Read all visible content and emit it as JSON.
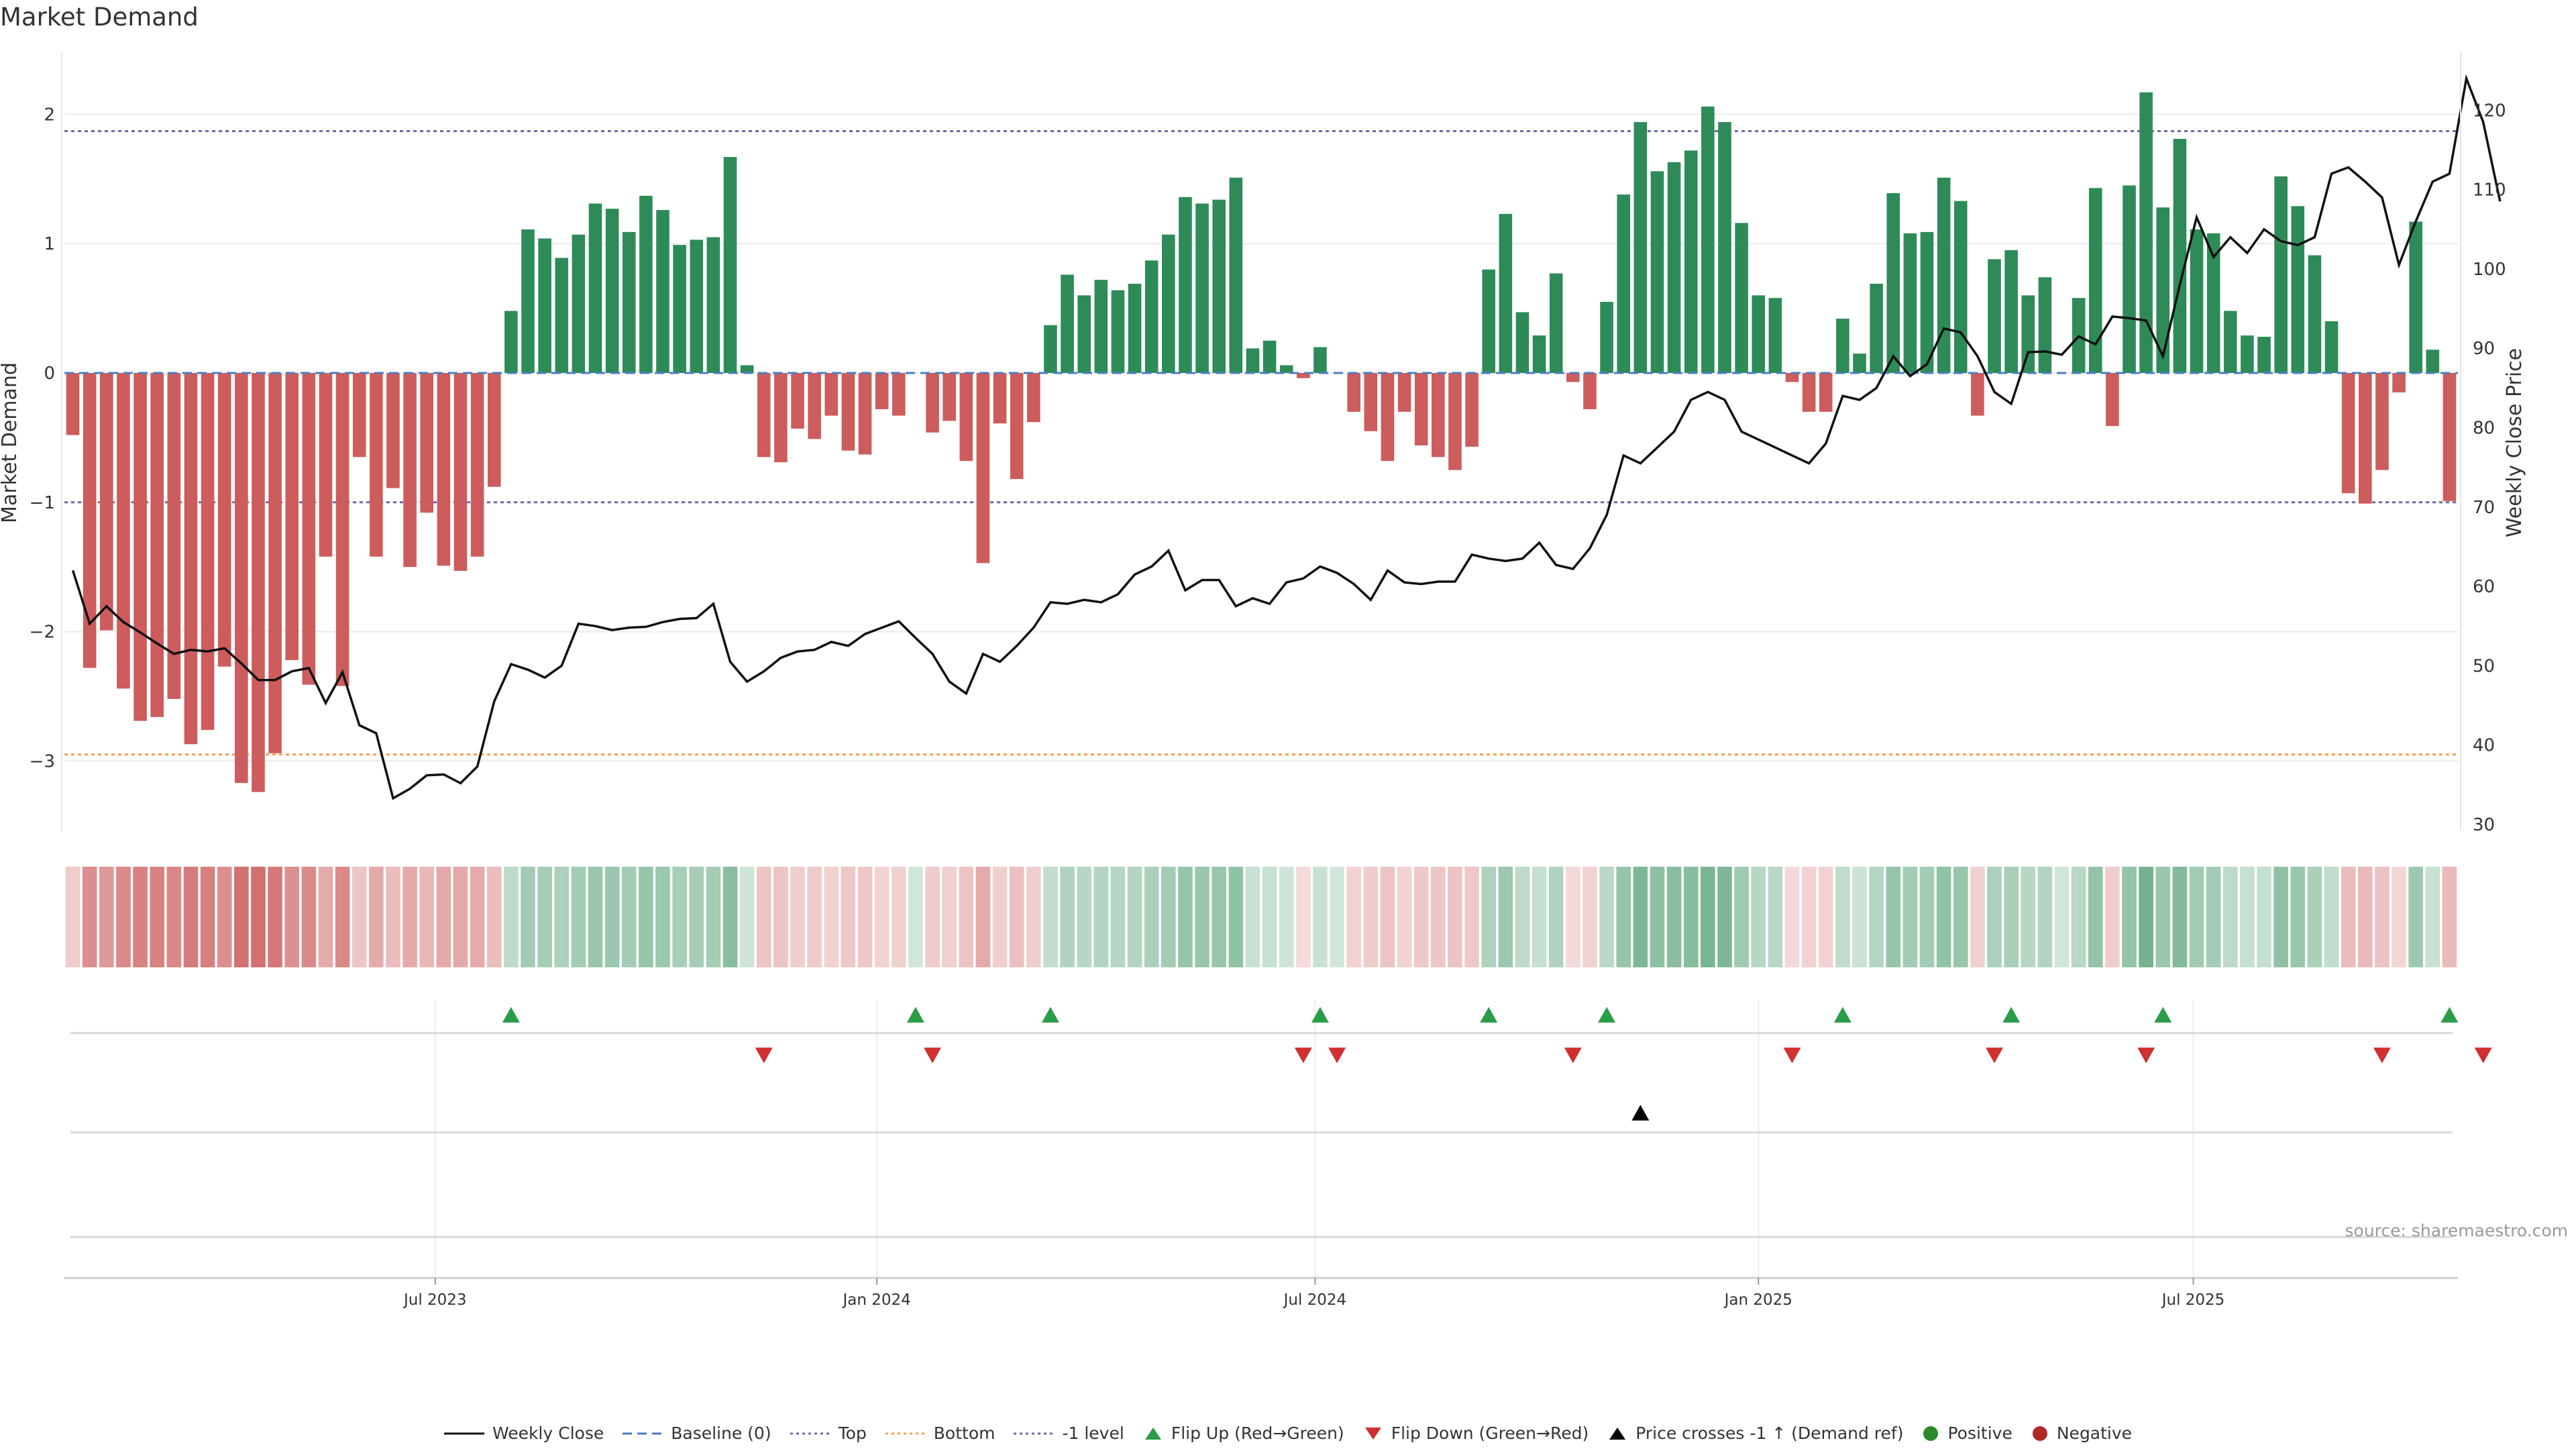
{
  "title": "Market Demand",
  "source": "source: sharemaestro.com",
  "colors": {
    "positive": "#2e8b57",
    "negative": "#cd5c5c",
    "price": "#111111",
    "baseline": "#4a7ec2",
    "top": "#6b6ba8",
    "bottom": "#f0a050",
    "level": "#6b6ba8",
    "flip_up": "#2a9d48",
    "flip_down": "#d03030",
    "cross": "#000000",
    "pos_dot": "#2a8a2a",
    "neg_dot": "#b02828"
  },
  "chart_data": {
    "type": "bar",
    "title": "Market Demand",
    "ylabel": "Market Demand",
    "y2label": "Weekly Close Price",
    "ylim": [
      -3.55,
      2.5
    ],
    "y2lim": [
      29,
      124
    ],
    "yticks": [
      2,
      1,
      0,
      -1,
      -2,
      -3
    ],
    "ytick_labels": [
      "2",
      "1",
      "0",
      "−1",
      "−2",
      "−3"
    ],
    "y2ticks": [
      120,
      110,
      100,
      90,
      80,
      70,
      60,
      50,
      40,
      30
    ],
    "start_date": "2023-03-03",
    "date_ticks": [
      {
        "label": "Jul 2023",
        "week": 21.5
      },
      {
        "label": "Jan 2024",
        "week": 47.7
      },
      {
        "label": "Jul 2024",
        "week": 73.7
      },
      {
        "label": "Jan 2025",
        "week": 100
      },
      {
        "label": "Jul 2025",
        "week": 125.8
      }
    ],
    "reference_lines": {
      "top": 1.87,
      "bottom": -2.95,
      "minus1": -1.0,
      "baseline": 0
    },
    "demand": [
      -0.48,
      -2.28,
      -1.99,
      -2.44,
      -2.69,
      -2.66,
      -2.52,
      -2.87,
      -2.76,
      -2.27,
      -3.17,
      -3.24,
      -2.94,
      -2.22,
      -2.41,
      -1.42,
      -2.42,
      -0.65,
      -1.42,
      -0.89,
      -1.5,
      -1.08,
      -1.49,
      -1.53,
      -1.42,
      -0.88,
      0.48,
      1.11,
      1.04,
      0.89,
      1.07,
      1.31,
      1.27,
      1.09,
      1.37,
      1.26,
      0.99,
      1.03,
      1.05,
      1.67,
      0.06,
      -0.65,
      -0.69,
      -0.43,
      -0.51,
      -0.33,
      -0.6,
      -0.63,
      -0.28,
      -0.33,
      0,
      -0.46,
      -0.37,
      -0.68,
      -1.47,
      -0.39,
      -0.82,
      -0.38,
      0.37,
      0.76,
      0.6,
      0.72,
      0.64,
      0.69,
      0.87,
      1.07,
      1.36,
      1.31,
      1.34,
      1.51,
      0.19,
      0.25,
      0.06,
      -0.04,
      0.2,
      0,
      -0.3,
      -0.45,
      -0.68,
      -0.3,
      -0.56,
      -0.65,
      -0.75,
      -0.57,
      0.8,
      1.23,
      0.47,
      0.29,
      0.77,
      -0.07,
      -0.28,
      0.55,
      1.38,
      1.94,
      1.56,
      1.63,
      1.72,
      2.06,
      1.94,
      1.16,
      0.6,
      0.58,
      -0.07,
      -0.3,
      -0.3,
      0.42,
      0.15,
      0.69,
      1.39,
      1.08,
      1.09,
      1.51,
      1.33,
      -0.33,
      0.88,
      0.95,
      0.6,
      0.74,
      0,
      0.58,
      1.43,
      -0.41,
      1.45,
      2.17,
      1.28,
      1.81,
      1.11,
      1.08,
      0.48,
      0.29,
      0.28,
      1.52,
      1.29,
      0.91,
      0.4,
      -0.93,
      -1.01,
      -0.75,
      -0.15,
      1.17,
      0.18,
      -0.99
    ],
    "price": [
      62,
      55.3,
      57.5,
      55.5,
      54.2,
      52.8,
      51.5,
      52,
      51.8,
      52.2,
      50.3,
      48.2,
      48.2,
      49.3,
      49.7,
      45.3,
      49.2,
      42.5,
      41.5,
      33.3,
      34.5,
      36.2,
      36.3,
      35.2,
      37.3,
      45.5,
      50.2,
      49.5,
      48.5,
      50,
      55.3,
      55,
      54.5,
      54.8,
      54.9,
      55.5,
      55.9,
      56,
      57.8,
      50.5,
      48,
      49.3,
      51,
      51.8,
      52,
      53,
      52.5,
      54,
      54.8,
      55.6,
      53.5,
      51.5,
      48,
      46.5,
      51.5,
      50.5,
      52.5,
      54.8,
      58,
      57.8,
      58.3,
      58,
      59,
      61.5,
      62.5,
      64.5,
      59.5,
      60.8,
      60.8,
      57.5,
      58.5,
      57.8,
      60.5,
      61,
      62.5,
      61.7,
      60.3,
      58.3,
      62,
      60.5,
      60.3,
      60.6,
      60.6,
      64,
      63.5,
      63.2,
      63.5,
      65.5,
      62.7,
      62.2,
      64.8,
      69,
      76.5,
      75.5,
      77.5,
      79.5,
      83.5,
      84.5,
      83.5,
      79.5,
      78.5,
      77.5,
      76.5,
      75.5,
      78,
      84,
      83.5,
      85,
      89,
      86.5,
      88,
      92.5,
      92,
      89,
      84.5,
      83,
      89.5,
      89.6,
      89.2,
      91.5,
      90.5,
      94,
      93.8,
      93.5,
      89,
      98,
      106.5,
      101.5,
      104,
      102,
      105,
      103.5,
      103,
      104,
      112,
      112.8,
      111,
      109,
      100.5,
      106,
      111,
      112,
      124,
      118.5,
      108.5
    ],
    "flip_up_weeks": [
      26,
      50,
      58,
      74,
      84,
      91,
      105,
      115,
      124,
      141
    ],
    "flip_down_weeks": [
      41,
      51,
      73,
      75,
      89,
      102,
      114,
      123,
      137,
      143
    ],
    "price_cross_weeks": [
      93
    ]
  },
  "legend": {
    "weekly_close": "Weekly Close",
    "baseline": "Baseline (0)",
    "top": "Top",
    "bottom": "Bottom",
    "level": "-1 level",
    "flip_up": "Flip Up (Red→Green)",
    "flip_down": "Flip Down (Green→Red)",
    "price_cross": "Price crosses -1 ↑ (Demand ref)",
    "positive": "Positive",
    "negative": "Negative"
  }
}
